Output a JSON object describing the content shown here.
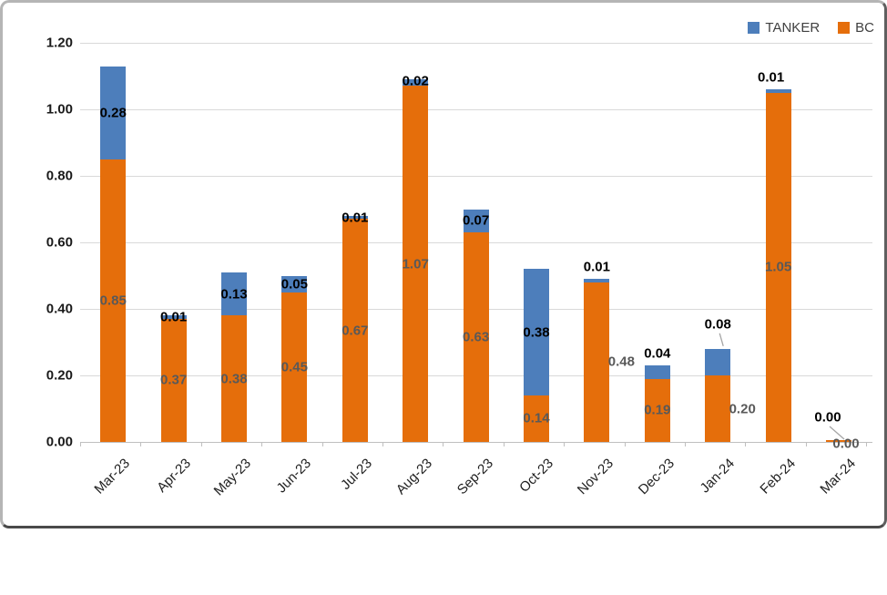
{
  "chart_data": {
    "type": "bar",
    "stacked": true,
    "title": "",
    "categories": [
      "Mar-23",
      "Apr-23",
      "May-23",
      "Jun-23",
      "Jul-23",
      "Aug-23",
      "Sep-23",
      "Oct-23",
      "Nov-23",
      "Dec-23",
      "Jan-24",
      "Feb-24",
      "Mar-24"
    ],
    "series": [
      {
        "name": "TANKER",
        "color": "#4d7ebb",
        "values": [
          0.28,
          0.01,
          0.13,
          0.05,
          0.01,
          0.02,
          0.07,
          0.38,
          0.01,
          0.04,
          0.08,
          0.01,
          0.0
        ]
      },
      {
        "name": "BC",
        "color": "#e56e0b",
        "values": [
          0.85,
          0.37,
          0.38,
          0.45,
          0.67,
          1.07,
          0.63,
          0.14,
          0.48,
          0.19,
          0.2,
          1.05,
          0.0
        ]
      }
    ],
    "stack_order_bottom_to_top": [
      "BC",
      "TANKER"
    ],
    "ylim": [
      0,
      1.2
    ],
    "ystep": 0.2,
    "yticks": [
      "0.00",
      "0.20",
      "0.40",
      "0.60",
      "0.80",
      "1.00",
      "1.20"
    ],
    "grid": true,
    "legend_position": "top-right",
    "colors": {
      "tanker_label": "#000000",
      "bc_label": "#595959",
      "gridline": "#d9d9d9",
      "axis": "#bfbfbf",
      "leader_line": "#a6a6a6"
    },
    "layout_hints": {
      "tanker_label_pos": [
        "center",
        "top",
        "center",
        "center",
        "top",
        "top",
        "center",
        "center",
        "above",
        "above",
        "callout",
        "above",
        "callout"
      ],
      "tanker_label_dx": [
        0,
        0,
        0,
        0,
        0,
        0,
        0,
        0,
        0,
        0,
        0,
        -8,
        -12
      ],
      "bc_label_dx": [
        0,
        0,
        0,
        0,
        0,
        0,
        0,
        0,
        27,
        0,
        27,
        0,
        8
      ],
      "bc_label_at_baseline_index": 12
    }
  }
}
